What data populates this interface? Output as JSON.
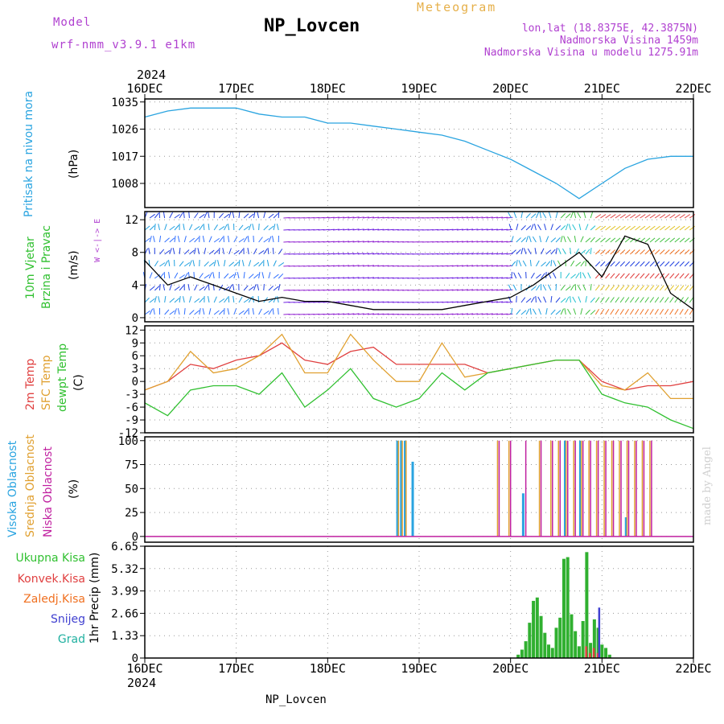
{
  "header": {
    "model_label": "Model",
    "model_name": "wrf-nmm_v3.9.1  e1km",
    "title": "NP_Lovcen",
    "meteogram": "Meteogram",
    "lonlat": "lon,lat (18.8375E, 42.3875N)",
    "elevation": "Nadmorska Visina 1459m",
    "model_elevation": "Nadmorska Visina u modelu 1275.91m"
  },
  "credit": "made by Angel",
  "footer_station": "NP_Lovcen",
  "x_axis": {
    "year": "2024",
    "ticks": [
      "16DEC",
      "17DEC",
      "18DEC",
      "19DEC",
      "20DEC",
      "21DEC",
      "22DEC"
    ]
  },
  "panels": {
    "pressure": {
      "ylabel": "Pritisak na nivou mora",
      "unit": "(hPa)",
      "ticks": [
        "1035",
        "1026",
        "1017",
        "1008"
      ]
    },
    "wind": {
      "ylabel1": "10m Vjetar",
      "ylabel2": "Brzina i Pravac",
      "unit": "(m/s)",
      "ticks": [
        "12",
        "8",
        "4",
        "0"
      ],
      "compass": "W <-|-> E"
    },
    "temp": {
      "ylabel1": "2m Temp",
      "ylabel2": "SFC Temp",
      "ylabel3": "dewpt Temp",
      "unit": "(C)",
      "ticks": [
        "12",
        "9",
        "6",
        "3",
        "0",
        "-3",
        "-6",
        "-9",
        "-12"
      ]
    },
    "cloud": {
      "ylabel1": "Visoka Oblacnost",
      "ylabel2": "Srednja Oblacnost",
      "ylabel3": "Niska Oblacnost",
      "unit": "(%)",
      "ticks": [
        "100",
        "75",
        "50",
        "25",
        "0"
      ]
    },
    "precip": {
      "ylabel": "1hr Precip (mm)",
      "ticks": [
        "6.65",
        "5.32",
        "3.99",
        "2.66",
        "1.33",
        "0"
      ],
      "legend": [
        "Ukupna Kisa",
        "Konvek.Kisa",
        "Zaledj.Kisa",
        "Snijeg",
        "Grad"
      ]
    }
  },
  "colors": {
    "pressure": "#2aa4e0",
    "temp2m": "#e04040",
    "sfc": "#e0a030",
    "dewpt": "#30c030",
    "high": "#2aa4e0",
    "mid": "#e0a030",
    "low": "#c020a0",
    "rain": "#30b030",
    "conv": "#e04040",
    "frz": "#f07020",
    "snow": "#4040d0",
    "grad": "#20b0a0",
    "purple": "#b040d0"
  },
  "chart_data": [
    {
      "type": "line",
      "title": "",
      "ylabel": "Pritisak na nivou mora (hPa)",
      "ylim": [
        1000,
        1036
      ],
      "x": [
        0,
        6,
        12,
        18,
        24,
        30,
        36,
        42,
        48,
        54,
        60,
        66,
        72,
        78,
        84,
        90,
        96,
        102,
        108,
        114,
        120,
        126,
        132,
        138,
        144
      ],
      "series": [
        {
          "values": [
            1030,
            1032,
            1033,
            1033,
            1033,
            1031,
            1030,
            1030,
            1028,
            1028,
            1027,
            1026,
            1025,
            1024,
            1022,
            1019,
            1016,
            1012,
            1008,
            1003,
            1008,
            1013,
            1016,
            1017,
            1017
          ]
        }
      ]
    },
    {
      "type": "line",
      "ylabel": "10m Vjetar Brzina i Pravac (m/s)",
      "ylim": [
        -0.5,
        13
      ],
      "x": [
        0,
        6,
        12,
        18,
        24,
        30,
        36,
        42,
        48,
        54,
        60,
        66,
        72,
        78,
        84,
        90,
        96,
        102,
        108,
        114,
        120,
        126,
        132,
        138,
        144
      ],
      "series": [
        {
          "values": [
            7,
            4,
            5,
            4,
            3,
            2,
            2.5,
            2,
            2,
            1.5,
            1,
            1,
            1,
            1,
            1.5,
            2,
            2.5,
            4,
            6,
            8,
            5,
            10,
            9,
            3,
            1
          ]
        }
      ]
    },
    {
      "type": "line",
      "ylabel": "2m Temp / SFC Temp / dewpt Temp (C)",
      "ylim": [
        -12,
        13
      ],
      "x": [
        0,
        6,
        12,
        18,
        24,
        30,
        36,
        42,
        48,
        54,
        60,
        66,
        72,
        78,
        84,
        90,
        96,
        102,
        108,
        114,
        120,
        126,
        132,
        138,
        144
      ],
      "series": [
        {
          "name": "2m Temp",
          "values": [
            -2,
            0,
            4,
            3,
            5,
            6,
            9,
            5,
            4,
            7,
            8,
            4,
            4,
            4,
            4,
            2,
            3,
            4,
            5,
            5,
            0,
            -2,
            -1,
            -1,
            0
          ]
        },
        {
          "name": "SFC Temp",
          "values": [
            -2,
            0,
            7,
            2,
            3,
            6,
            11,
            2,
            2,
            11,
            5,
            0,
            0,
            9,
            1,
            2,
            3,
            4,
            5,
            5,
            -1,
            -2,
            2,
            -4,
            -4
          ]
        },
        {
          "name": "dewpt Temp",
          "values": [
            -5,
            -8,
            -2,
            -1,
            -1,
            -3,
            2,
            -6,
            -2,
            3,
            -4,
            -6,
            -4,
            2,
            -2,
            2,
            3,
            4,
            5,
            5,
            -3,
            -5,
            -6,
            -9,
            -11
          ]
        }
      ]
    },
    {
      "type": "bar",
      "ylabel": "Oblacnost (%)",
      "ylim": [
        0,
        100
      ],
      "x": [
        66,
        67,
        68,
        70,
        92,
        95,
        99,
        103,
        106,
        108,
        110,
        112,
        114,
        116,
        118,
        120,
        122,
        124,
        126,
        128,
        130,
        132
      ],
      "series": [
        {
          "name": "Visoka Oblacnost",
          "values": [
            100,
            100,
            100,
            78,
            0,
            0,
            45,
            0,
            0,
            0,
            100,
            0,
            100,
            0,
            0,
            0,
            0,
            0,
            20,
            0,
            0,
            0
          ]
        },
        {
          "name": "Srednja Oblacnost",
          "values": [
            100,
            100,
            100,
            0,
            100,
            100,
            0,
            100,
            100,
            100,
            100,
            100,
            100,
            100,
            100,
            100,
            100,
            100,
            100,
            100,
            100,
            100
          ]
        },
        {
          "name": "Niska Oblacnost",
          "values": [
            0,
            0,
            0,
            0,
            100,
            100,
            100,
            100,
            100,
            100,
            100,
            100,
            100,
            100,
            100,
            100,
            100,
            100,
            100,
            100,
            100,
            100
          ]
        }
      ]
    },
    {
      "type": "bar",
      "ylabel": "1hr Precip (mm)",
      "ylim": [
        0,
        6.65
      ],
      "x": [
        98,
        99,
        100,
        101,
        102,
        103,
        104,
        105,
        106,
        107,
        108,
        109,
        110,
        111,
        112,
        113,
        114,
        115,
        116,
        117,
        118,
        119,
        120,
        121,
        122
      ],
      "series": [
        {
          "name": "Ukupna Kisa",
          "values": [
            0.2,
            0.5,
            1.0,
            2.1,
            3.4,
            3.6,
            2.5,
            1.5,
            0.8,
            0.6,
            1.8,
            2.4,
            5.9,
            6.0,
            2.6,
            1.6,
            0.7,
            2.2,
            6.3,
            0.9,
            2.3,
            1.8,
            0.8,
            0.6,
            0.2
          ]
        },
        {
          "name": "Konvek.Kisa",
          "values": [
            0,
            0,
            0,
            0,
            0,
            0,
            0,
            0,
            0,
            0,
            0,
            0,
            0,
            0,
            0,
            0,
            0,
            0,
            0.7,
            0.3,
            0.6,
            0.3,
            0,
            0,
            0
          ]
        },
        {
          "name": "Snijeg",
          "values": [
            0,
            0,
            0,
            0,
            0,
            0,
            0,
            0,
            0,
            0,
            0,
            0,
            0,
            0,
            0,
            0,
            0,
            0,
            0,
            0,
            0,
            3.0,
            0,
            0,
            0
          ]
        }
      ]
    }
  ]
}
